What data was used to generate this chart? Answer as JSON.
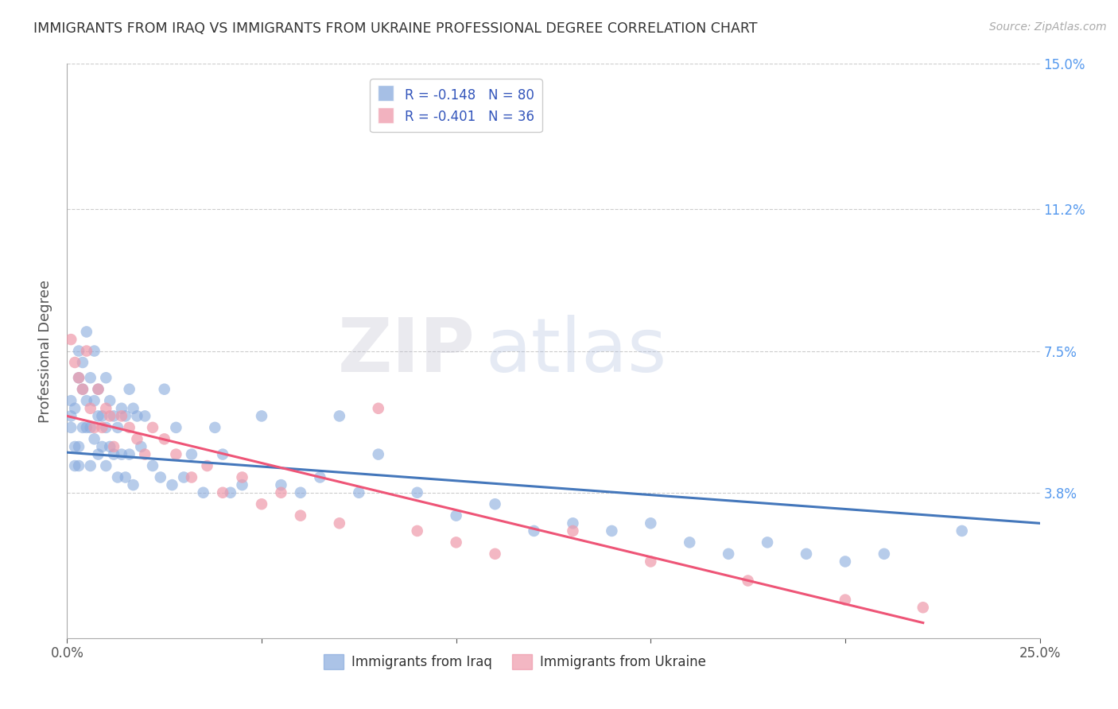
{
  "title": "IMMIGRANTS FROM IRAQ VS IMMIGRANTS FROM UKRAINE PROFESSIONAL DEGREE CORRELATION CHART",
  "source": "Source: ZipAtlas.com",
  "ylabel": "Professional Degree",
  "xlim": [
    0.0,
    0.25
  ],
  "ylim": [
    0.0,
    0.15
  ],
  "yticks": [
    0.0,
    0.038,
    0.075,
    0.112,
    0.15
  ],
  "ytick_labels": [
    "",
    "3.8%",
    "7.5%",
    "11.2%",
    "15.0%"
  ],
  "xticks": [
    0.0,
    0.05,
    0.1,
    0.15,
    0.2,
    0.25
  ],
  "xtick_labels": [
    "0.0%",
    "",
    "",
    "",
    "",
    "25.0%"
  ],
  "iraq_color": "#88AADD",
  "ukraine_color": "#EE99AA",
  "iraq_line_color": "#4477BB",
  "ukraine_line_color": "#EE5577",
  "iraq_R": -0.148,
  "iraq_N": 80,
  "ukraine_R": -0.401,
  "ukraine_N": 36,
  "watermark": "ZIPatlas",
  "background_color": "#FFFFFF",
  "grid_color": "#CCCCCC",
  "title_color": "#333333",
  "axis_label_color": "#555555",
  "right_tick_color": "#5599EE",
  "iraq_scatter": {
    "x": [
      0.001,
      0.001,
      0.001,
      0.002,
      0.002,
      0.002,
      0.003,
      0.003,
      0.003,
      0.003,
      0.004,
      0.004,
      0.004,
      0.005,
      0.005,
      0.005,
      0.006,
      0.006,
      0.006,
      0.007,
      0.007,
      0.007,
      0.008,
      0.008,
      0.008,
      0.009,
      0.009,
      0.01,
      0.01,
      0.01,
      0.011,
      0.011,
      0.012,
      0.012,
      0.013,
      0.013,
      0.014,
      0.014,
      0.015,
      0.015,
      0.016,
      0.016,
      0.017,
      0.017,
      0.018,
      0.019,
      0.02,
      0.022,
      0.024,
      0.025,
      0.027,
      0.028,
      0.03,
      0.032,
      0.035,
      0.038,
      0.04,
      0.042,
      0.045,
      0.05,
      0.055,
      0.06,
      0.065,
      0.07,
      0.075,
      0.08,
      0.09,
      0.1,
      0.11,
      0.12,
      0.13,
      0.14,
      0.15,
      0.16,
      0.17,
      0.18,
      0.19,
      0.2,
      0.21,
      0.23
    ],
    "y": [
      0.058,
      0.055,
      0.062,
      0.06,
      0.05,
      0.045,
      0.075,
      0.068,
      0.05,
      0.045,
      0.072,
      0.065,
      0.055,
      0.08,
      0.062,
      0.055,
      0.068,
      0.055,
      0.045,
      0.075,
      0.062,
      0.052,
      0.065,
      0.058,
      0.048,
      0.058,
      0.05,
      0.068,
      0.055,
      0.045,
      0.062,
      0.05,
      0.058,
      0.048,
      0.055,
      0.042,
      0.06,
      0.048,
      0.058,
      0.042,
      0.065,
      0.048,
      0.06,
      0.04,
      0.058,
      0.05,
      0.058,
      0.045,
      0.042,
      0.065,
      0.04,
      0.055,
      0.042,
      0.048,
      0.038,
      0.055,
      0.048,
      0.038,
      0.04,
      0.058,
      0.04,
      0.038,
      0.042,
      0.058,
      0.038,
      0.048,
      0.038,
      0.032,
      0.035,
      0.028,
      0.03,
      0.028,
      0.03,
      0.025,
      0.022,
      0.025,
      0.022,
      0.02,
      0.022,
      0.028
    ]
  },
  "ukraine_scatter": {
    "x": [
      0.001,
      0.002,
      0.003,
      0.004,
      0.005,
      0.006,
      0.007,
      0.008,
      0.009,
      0.01,
      0.011,
      0.012,
      0.014,
      0.016,
      0.018,
      0.02,
      0.022,
      0.025,
      0.028,
      0.032,
      0.036,
      0.04,
      0.045,
      0.05,
      0.055,
      0.06,
      0.07,
      0.08,
      0.09,
      0.1,
      0.11,
      0.13,
      0.15,
      0.175,
      0.2,
      0.22
    ],
    "y": [
      0.078,
      0.072,
      0.068,
      0.065,
      0.075,
      0.06,
      0.055,
      0.065,
      0.055,
      0.06,
      0.058,
      0.05,
      0.058,
      0.055,
      0.052,
      0.048,
      0.055,
      0.052,
      0.048,
      0.042,
      0.045,
      0.038,
      0.042,
      0.035,
      0.038,
      0.032,
      0.03,
      0.06,
      0.028,
      0.025,
      0.022,
      0.028,
      0.02,
      0.015,
      0.01,
      0.008
    ]
  }
}
